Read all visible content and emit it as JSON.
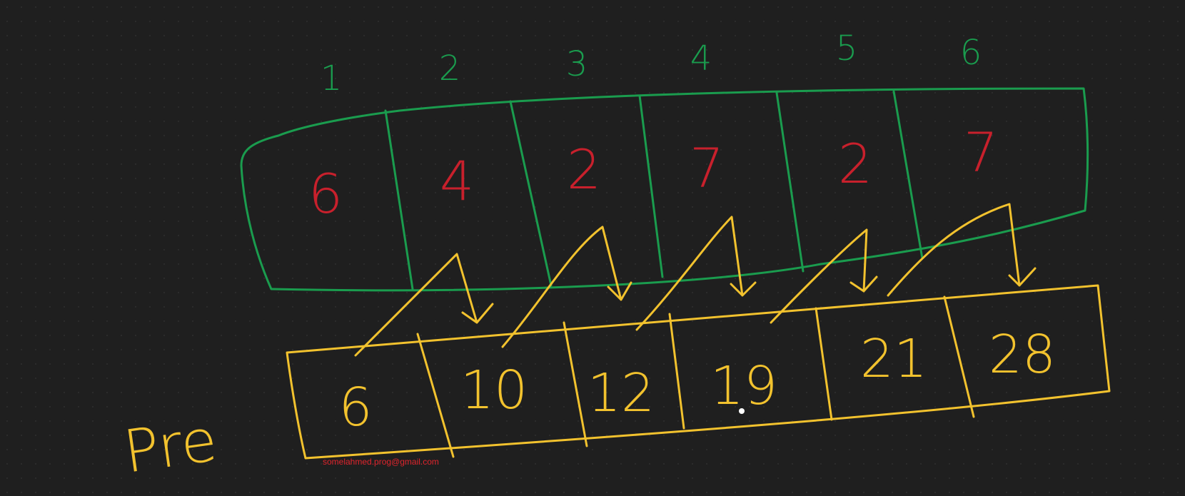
{
  "colors": {
    "background": "#1f1f1f",
    "array_outline": "#1a9c4e",
    "index_text": "#1a9c4e",
    "array_value_text": "#c8202c",
    "prefix_outline": "#f2c22e",
    "prefix_text": "#f2c22e",
    "email_text": "#e0242c"
  },
  "indices": [
    "1",
    "2",
    "3",
    "4",
    "5",
    "6"
  ],
  "array_values": [
    "6",
    "4",
    "2",
    "7",
    "2",
    "7"
  ],
  "prefix_values": [
    "6",
    "10",
    "12",
    "19",
    "21",
    "28"
  ],
  "prefix_label": "Pre",
  "watermark": "somelahmed.prog@gmail.com"
}
